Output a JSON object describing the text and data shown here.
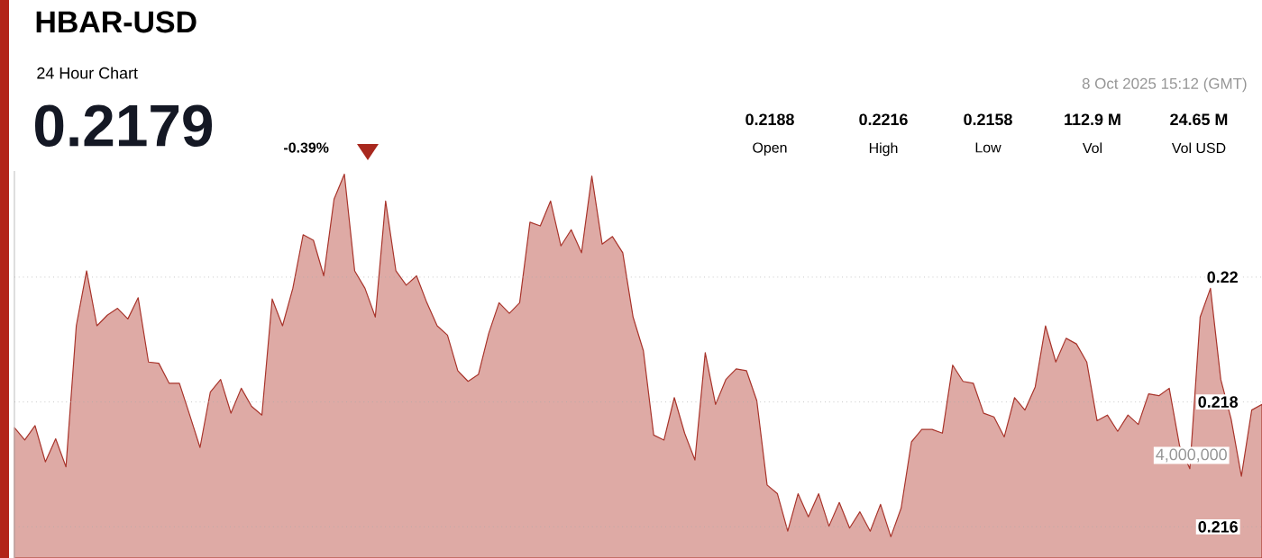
{
  "chart_data": {
    "type": "area",
    "title": "HBAR-USD",
    "subtitle": "24 Hour Chart",
    "annotations": [
      "0.2179",
      "-0.39%",
      "8 Oct 2025 15:12 (GMT)",
      "0.2188",
      "Open",
      "0.2216",
      "High",
      "0.2158",
      "Low",
      "112.9 M",
      "Vol",
      "24.65 M",
      "Vol USD",
      "4,000,000"
    ],
    "categories": [
      null,
      null,
      null,
      null,
      null,
      null,
      null,
      null,
      null,
      null,
      null,
      null,
      null,
      null,
      null,
      null,
      null,
      null,
      null,
      null,
      null,
      null,
      null,
      null,
      null,
      null,
      null,
      null,
      null,
      null,
      null,
      null,
      null,
      null,
      null,
      null,
      null,
      null,
      null,
      null,
      null,
      null,
      null,
      null,
      null,
      null,
      null,
      null,
      null,
      null,
      null,
      null,
      null,
      null,
      null,
      null,
      null,
      null,
      null,
      null,
      null,
      null,
      null,
      null,
      null,
      null,
      null,
      null,
      null,
      null,
      null,
      null,
      null,
      null,
      null,
      null,
      null,
      null,
      null,
      null,
      null,
      null,
      null,
      null,
      null,
      null,
      null,
      null,
      null,
      null,
      null,
      null,
      null,
      null,
      null,
      null,
      null,
      null,
      null,
      null,
      null,
      null,
      null,
      null,
      null,
      null,
      null,
      null,
      null,
      null,
      null,
      null,
      null,
      null,
      null,
      null,
      null,
      null,
      null,
      null,
      null,
      null
    ],
    "series": [
      {
        "color": "#deaaa5",
        "values": [
          0.21759,
          0.21739,
          0.21762,
          0.21704,
          0.21741,
          0.21696,
          0.21922,
          0.2201,
          0.21922,
          0.21939,
          0.2195,
          0.21933,
          0.21967,
          0.21864,
          0.21862,
          0.2183,
          0.2183,
          0.21779,
          0.21727,
          0.21816,
          0.21836,
          0.21782,
          0.21822,
          0.21793,
          0.21779,
          0.21965,
          0.21922,
          0.21982,
          0.22068,
          0.22059,
          0.22002,
          0.22125,
          0.22165,
          0.2201,
          0.21982,
          0.21936,
          0.22122,
          0.2201,
          0.21987,
          0.22002,
          0.21959,
          0.21922,
          0.21907,
          0.2185,
          0.21833,
          0.21844,
          0.2191,
          0.21959,
          0.21942,
          0.21959,
          0.22088,
          0.22082,
          0.22122,
          0.2205,
          0.22076,
          0.22039,
          0.22162,
          0.22053,
          0.22065,
          0.22039,
          0.21936,
          0.21882,
          0.21747,
          0.21739,
          0.21807,
          0.2175,
          0.21707,
          0.21879,
          0.21796,
          0.21836,
          0.21853,
          0.2185,
          0.21802,
          0.21667,
          0.21653,
          0.21593,
          0.21653,
          0.21616,
          0.21653,
          0.21601,
          0.21639,
          0.21598,
          0.21624,
          0.21593,
          0.21636,
          0.21584,
          0.2163,
          0.21736,
          0.21756,
          0.21756,
          0.2175,
          0.21859,
          0.21833,
          0.2183,
          0.21782,
          0.21776,
          0.21744,
          0.21807,
          0.21787,
          0.21824,
          0.21922,
          0.21864,
          0.21902,
          0.21893,
          0.21864,
          0.2177,
          0.21779,
          0.21753,
          0.21779,
          0.21764,
          0.21813,
          0.2181,
          0.21822,
          0.2173,
          0.21693,
          0.21936,
          0.21982,
          0.21836,
          0.21773,
          0.21681,
          0.21787,
          0.21796
        ]
      }
    ],
    "ylim": [
      0.2155,
      0.2217
    ],
    "yticks": [
      0.216,
      0.218,
      0.22
    ],
    "grid": "y",
    "tick_labels": "y"
  }
}
